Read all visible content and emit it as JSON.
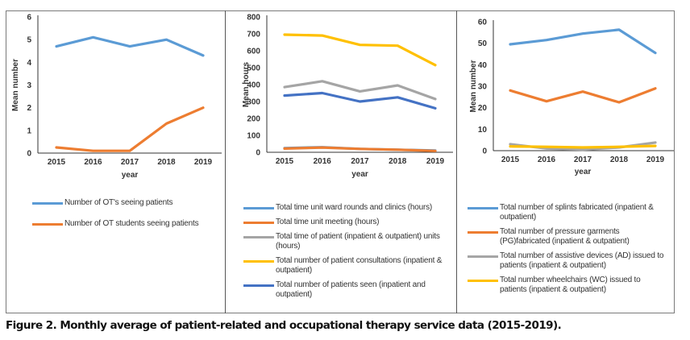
{
  "caption": "Figure 2. Monthly average of patient-related and occupational therapy service data (2015-2019).",
  "chart_data": [
    {
      "type": "line",
      "title": "",
      "xlabel": "year",
      "ylabel": "Mean number",
      "x": [
        "2015",
        "2016",
        "2017",
        "2018",
        "2019"
      ],
      "ylim": [
        0,
        6
      ],
      "yticks": [
        "0",
        "1",
        "2",
        "3",
        "4",
        "5",
        "6"
      ],
      "grid": false,
      "legend_position": "bottom",
      "series": [
        {
          "name": "Number of OT's seeing patients",
          "color": "#5b9bd5",
          "values": [
            4.7,
            5.1,
            4.7,
            5.0,
            4.3
          ]
        },
        {
          "name": "Number of OT students seeing patients",
          "color": "#ed7d31",
          "values": [
            0.25,
            0.1,
            0.1,
            1.3,
            2.0
          ]
        }
      ]
    },
    {
      "type": "line",
      "title": "",
      "xlabel": "year",
      "ylabel": "Mean hours",
      "x": [
        "2015",
        "2016",
        "2017",
        "2018",
        "2019"
      ],
      "ylim": [
        0,
        800
      ],
      "yticks": [
        "0",
        "100",
        "200",
        "300",
        "400",
        "500",
        "600",
        "700",
        "800"
      ],
      "grid": false,
      "legend_position": "bottom",
      "series": [
        {
          "name": "Total time unit ward rounds and clinics (hours)",
          "color": "#5b9bd5",
          "values": [
            25,
            30,
            20,
            15,
            10
          ]
        },
        {
          "name": "Total time unit meeting (hours)",
          "color": "#ed7d31",
          "values": [
            22,
            28,
            20,
            15,
            8
          ]
        },
        {
          "name": "Total time of patient (inpatient & outpatient) units (hours)",
          "color": "#a5a5a5",
          "values": [
            385,
            420,
            360,
            395,
            315
          ]
        },
        {
          "name": "Total number of patient consultations (inpatient & outpatient)",
          "color": "#ffc000",
          "values": [
            695,
            690,
            635,
            630,
            515
          ]
        },
        {
          "name": "Total number of patients seen (inpatient and outpatient)",
          "color": "#4472c4",
          "values": [
            335,
            350,
            300,
            325,
            260
          ]
        }
      ]
    },
    {
      "type": "line",
      "title": "",
      "xlabel": "year",
      "ylabel": "Mean number",
      "x": [
        "2015",
        "2016",
        "2017",
        "2018",
        "2019"
      ],
      "ylim": [
        0,
        60
      ],
      "yticks": [
        "0",
        "10",
        "20",
        "30",
        "40",
        "50",
        "60"
      ],
      "grid": false,
      "legend_position": "bottom",
      "series": [
        {
          "name": "Total number of splints fabricated (inpatient & outpatient)",
          "color": "#5b9bd5",
          "values": [
            49.5,
            51.5,
            54.5,
            56.3,
            45.5
          ]
        },
        {
          "name": "Total number of pressure garments (PG)fabricated (inpatient & outpatient)",
          "color": "#ed7d31",
          "values": [
            28,
            23,
            27.5,
            22.5,
            29
          ]
        },
        {
          "name": "Total number of assistive devices (AD) issued to patients (inpatient & outpatient)",
          "color": "#a5a5a5",
          "values": [
            3,
            1,
            0.5,
            1.5,
            3.8
          ]
        },
        {
          "name": "Total number wheelchairs (WC) issued to patients (inpatient & outpatient)",
          "color": "#ffc000",
          "values": [
            2,
            1.8,
            1.5,
            1.8,
            2.2
          ]
        }
      ]
    }
  ]
}
